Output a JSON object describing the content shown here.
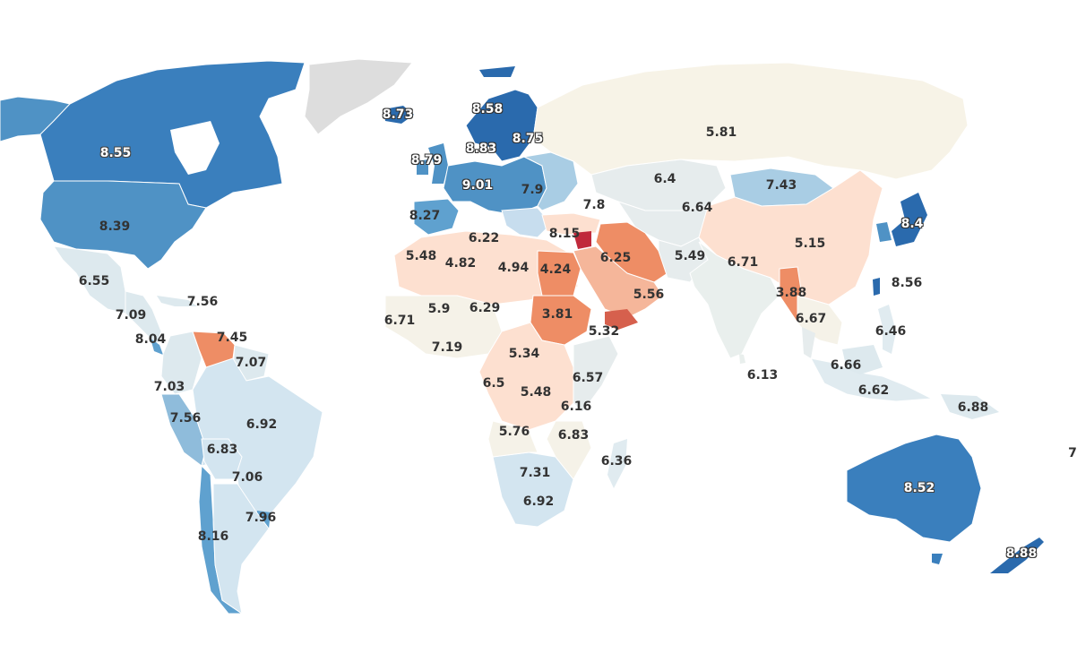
{
  "map": {
    "labels": [
      {
        "id": "canada",
        "value": "8.55"
      },
      {
        "id": "usa",
        "value": "8.39"
      },
      {
        "id": "mexico",
        "value": "6.55"
      },
      {
        "id": "cuba",
        "value": "7.56"
      },
      {
        "id": "central-america",
        "value": "7.09"
      },
      {
        "id": "costa-rica",
        "value": "8.04"
      },
      {
        "id": "venezuela",
        "value": "7.45"
      },
      {
        "id": "guyana",
        "value": "7.07"
      },
      {
        "id": "colombia",
        "value": "7.03"
      },
      {
        "id": "peru",
        "value": "7.56"
      },
      {
        "id": "brazil",
        "value": "6.92"
      },
      {
        "id": "bolivia",
        "value": "6.83"
      },
      {
        "id": "paraguay",
        "value": "7.06"
      },
      {
        "id": "uruguay",
        "value": "7.96"
      },
      {
        "id": "chile",
        "value": "8.16"
      },
      {
        "id": "iceland",
        "value": "8.73"
      },
      {
        "id": "scandinavia",
        "value": "8.58"
      },
      {
        "id": "finland",
        "value": "8.75"
      },
      {
        "id": "denmark",
        "value": "8.83"
      },
      {
        "id": "ireland",
        "value": "8.79"
      },
      {
        "id": "germany",
        "value": "9.01"
      },
      {
        "id": "hungary",
        "value": "7.9"
      },
      {
        "id": "spain",
        "value": "8.27"
      },
      {
        "id": "georgia",
        "value": "7.8"
      },
      {
        "id": "cyprus",
        "value": "8.15"
      },
      {
        "id": "russia",
        "value": "5.81"
      },
      {
        "id": "kazakhstan",
        "value": "6.4"
      },
      {
        "id": "mongolia",
        "value": "7.43"
      },
      {
        "id": "uzbekistan",
        "value": "6.64"
      },
      {
        "id": "japan",
        "value": "8.4"
      },
      {
        "id": "china",
        "value": "5.15"
      },
      {
        "id": "taiwan",
        "value": "8.56"
      },
      {
        "id": "iran",
        "value": "6.25"
      },
      {
        "id": "pakistan",
        "value": "5.49"
      },
      {
        "id": "india",
        "value": "6.71"
      },
      {
        "id": "myanmar",
        "value": "3.88"
      },
      {
        "id": "thailand",
        "value": "6.67"
      },
      {
        "id": "philippines",
        "value": "6.46"
      },
      {
        "id": "malaysia",
        "value": "6.66"
      },
      {
        "id": "indonesia",
        "value": "6.62"
      },
      {
        "id": "sri-lanka",
        "value": "6.13"
      },
      {
        "id": "papua",
        "value": "6.88"
      },
      {
        "id": "australia",
        "value": "8.52"
      },
      {
        "id": "new-zealand",
        "value": "8.88"
      },
      {
        "id": "tunisia",
        "value": "6.22"
      },
      {
        "id": "morocco",
        "value": "5.48"
      },
      {
        "id": "algeria",
        "value": "4.82"
      },
      {
        "id": "libya",
        "value": "4.94"
      },
      {
        "id": "egypt",
        "value": "4.24"
      },
      {
        "id": "mauritania",
        "value": "5.9"
      },
      {
        "id": "niger",
        "value": "6.29"
      },
      {
        "id": "senegal",
        "value": "6.71"
      },
      {
        "id": "ghana",
        "value": "7.19"
      },
      {
        "id": "sudan",
        "value": "3.81"
      },
      {
        "id": "saudi-arabia",
        "value": "5.56"
      },
      {
        "id": "yemen",
        "value": "5.32"
      },
      {
        "id": "central-african-rep",
        "value": "5.34"
      },
      {
        "id": "cameroon",
        "value": "6.5"
      },
      {
        "id": "dr-congo",
        "value": "5.48"
      },
      {
        "id": "kenya",
        "value": "6.57"
      },
      {
        "id": "tanzania",
        "value": "6.16"
      },
      {
        "id": "angola",
        "value": "5.76"
      },
      {
        "id": "mozambique",
        "value": "6.83"
      },
      {
        "id": "madagascar",
        "value": "6.36"
      },
      {
        "id": "botswana",
        "value": "7.31"
      },
      {
        "id": "south-africa",
        "value": "6.92"
      },
      {
        "id": "fiji",
        "value": "7"
      }
    ]
  }
}
